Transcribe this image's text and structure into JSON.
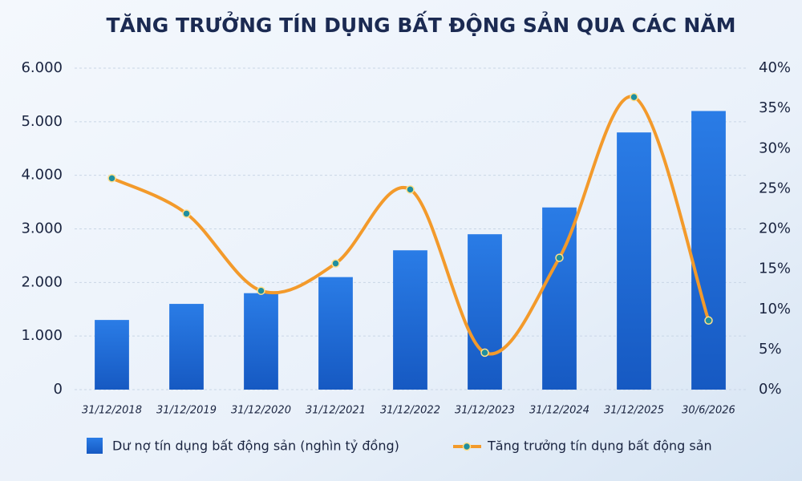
{
  "chart_data": {
    "type": "bar-line",
    "title": "TĂNG TRƯỞNG TÍN DỤNG BẤT ĐỘNG SẢN QUA CÁC NĂM",
    "categories": [
      "31/12/2018",
      "31/12/2019",
      "31/12/2020",
      "31/12/2021",
      "31/12/2022",
      "31/12/2023",
      "31/12/2024",
      "31/12/2025",
      "30/6/2026"
    ],
    "series": [
      {
        "name": "Dư nợ tín dụng bất động sản (nghìn tỷ đồng)",
        "type": "bar",
        "color": "#1f6fd6",
        "axis": "y",
        "values": [
          1300,
          1600,
          1800,
          2100,
          2600,
          2900,
          3400,
          4800,
          5200
        ]
      },
      {
        "name": "Tăng trưởng tín dụng bất động sản",
        "type": "line",
        "color": "#f39a2b",
        "marker_color": "#1f8fa0",
        "axis": "y2",
        "values": [
          26.3,
          21.9,
          12.3,
          15.7,
          24.9,
          4.6,
          16.4,
          36.4,
          8.6
        ]
      }
    ],
    "ylim": [
      0,
      6000
    ],
    "yticks": [
      0,
      {
        "value": 1000,
        "label": "1.000"
      },
      {
        "value": 2000,
        "label": "2.000"
      },
      {
        "value": 3000,
        "label": "3.000"
      },
      {
        "value": 4000,
        "label": "4.000"
      },
      {
        "value": 5000,
        "label": "5.000"
      },
      {
        "value": 6000,
        "label": "6.000"
      }
    ],
    "y2lim": [
      0,
      40
    ],
    "y2ticks": [
      {
        "value": 0,
        "label": "0%"
      },
      {
        "value": 5,
        "label": "5%"
      },
      {
        "value": 10,
        "label": "10%"
      },
      {
        "value": 15,
        "label": "15%"
      },
      {
        "value": 20,
        "label": "20%"
      },
      {
        "value": 25,
        "label": "25%"
      },
      {
        "value": 30,
        "label": "30%"
      },
      {
        "value": 35,
        "label": "35%"
      },
      {
        "value": 40,
        "label": "40%"
      }
    ],
    "grid": true
  }
}
